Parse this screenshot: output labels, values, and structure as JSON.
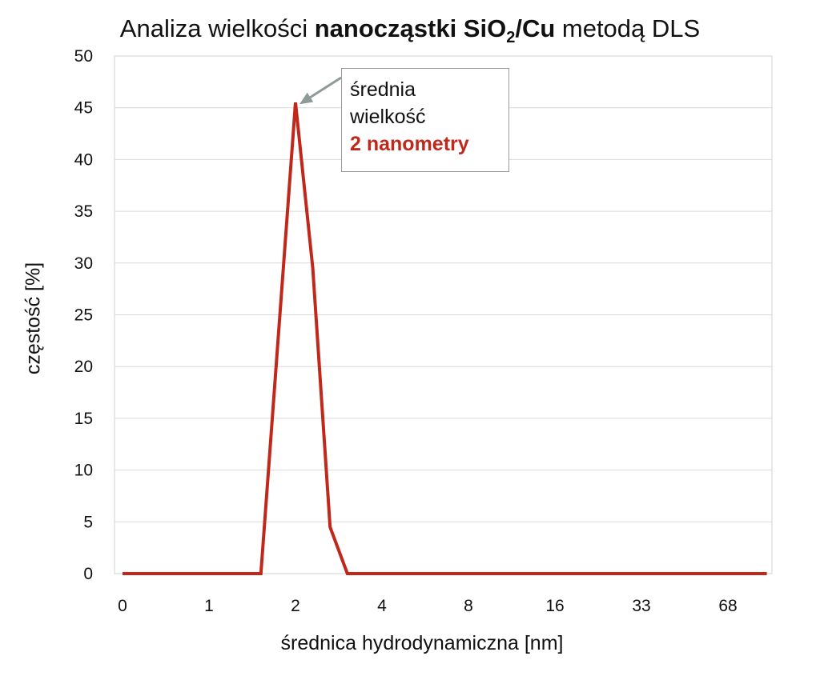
{
  "chart_data": {
    "type": "line",
    "title": {
      "prefix": "Analiza wielkości ",
      "bold_main": "nanocząstki SiO",
      "bold_sub": "2",
      "bold_tail": "/Cu",
      "suffix": " metodą DLS"
    },
    "xlabel": "średnica hydrodynamiczna [nm]",
    "ylabel": "częstość [%]",
    "x_tick_labels": [
      "0",
      "1",
      "2",
      "4",
      "8",
      "16",
      "33",
      "68"
    ],
    "y_ticks": [
      0,
      5,
      10,
      15,
      20,
      25,
      30,
      35,
      40,
      45,
      50
    ],
    "ylim": [
      0,
      50
    ],
    "xlim": [
      0,
      7.5
    ],
    "grid": "horizontal",
    "line_color": "#c0281c",
    "series": [
      {
        "x": [
          0,
          1.6,
          2,
          2.2,
          2.4,
          2.6,
          7.45
        ],
        "values": [
          0,
          0,
          45.5,
          29.5,
          4.5,
          0,
          0
        ]
      }
    ],
    "annotation": {
      "line1": "średnia",
      "line2": "wielkość",
      "highlight": "2 nanometry",
      "arrow_color": "#8c9a98"
    }
  }
}
